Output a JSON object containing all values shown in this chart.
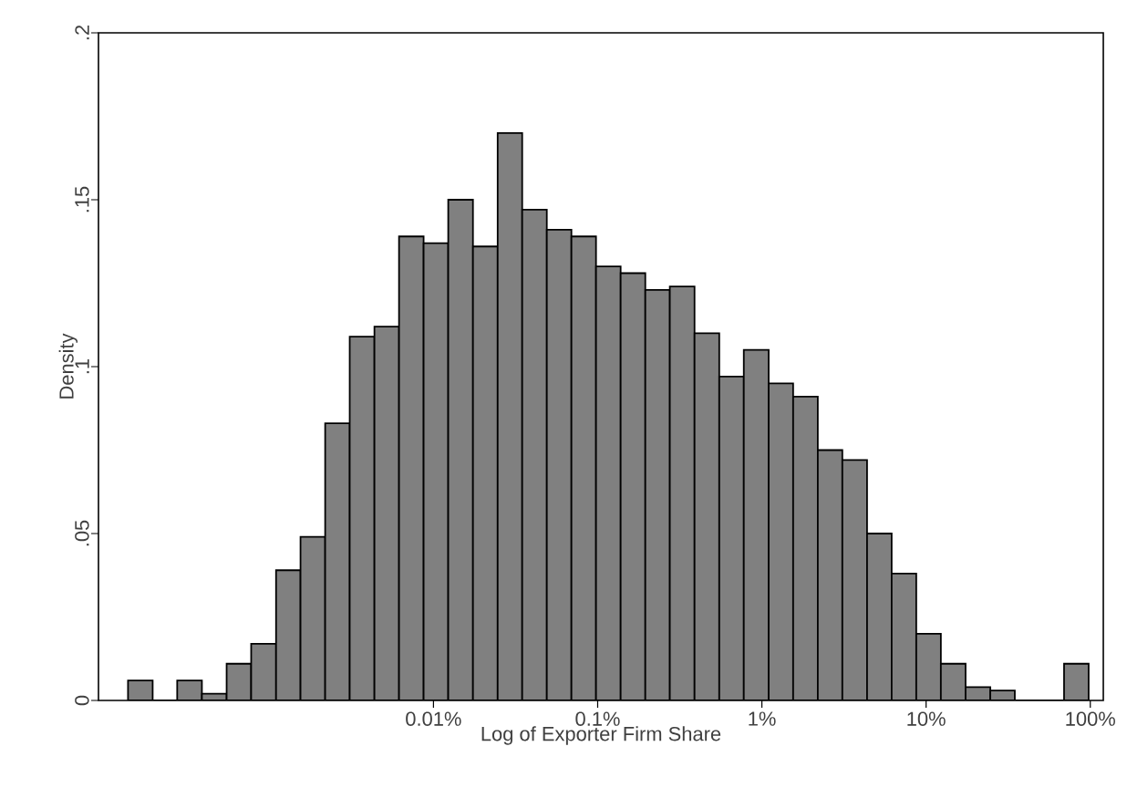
{
  "chart_data": {
    "type": "histogram",
    "xlabel": "Log of Exporter Firm Share",
    "ylabel": "Density",
    "bins": [
      0.000138,
      0.000195,
      0.000275,
      0.000389,
      0.00055,
      0.000776,
      0.0011,
      0.00155,
      0.00219,
      0.00309,
      0.00437,
      0.00617,
      0.00871,
      0.0123,
      0.0174,
      0.0246,
      0.0347,
      0.049,
      0.0692,
      0.0977,
      0.138,
      0.195,
      0.275,
      0.389,
      0.55,
      0.776,
      1.1,
      1.55,
      2.19,
      3.09,
      4.37,
      6.17,
      8.71,
      12.3,
      17.4,
      24.6,
      34.7,
      49,
      69.2,
      97.7
    ],
    "log": "x",
    "values": [
      0.006,
      0,
      0.006,
      0.002,
      0.011,
      0.017,
      0.039,
      0.049,
      0.083,
      0.109,
      0.112,
      0.139,
      0.137,
      0.15,
      0.136,
      0.17,
      0.147,
      0.141,
      0.139,
      0.13,
      0.128,
      0.123,
      0.124,
      0.11,
      0.097,
      0.105,
      0.095,
      0.091,
      0.075,
      0.072,
      0.05,
      0.038,
      0.02,
      0.011,
      0.004,
      0.003,
      0,
      0,
      0.011
    ],
    "color": "#808080",
    "xlim": [
      9.12e-05,
      120
    ],
    "ylim": [
      0,
      0.2
    ],
    "xticks": [
      {
        "value": 0.01,
        "label": "0.01%"
      },
      {
        "value": 0.1,
        "label": "0.1%"
      },
      {
        "value": 1,
        "label": "1%"
      },
      {
        "value": 10,
        "label": "10%"
      },
      {
        "value": 100,
        "label": "100%"
      }
    ],
    "yticks": [
      0,
      {
        "value": 0.05,
        "label": ".05"
      },
      {
        "value": 0.1,
        "label": ".1"
      },
      {
        "value": 0.15,
        "label": ".15"
      },
      {
        "value": 0.2,
        "label": ".2"
      }
    ],
    "grid": false
  }
}
